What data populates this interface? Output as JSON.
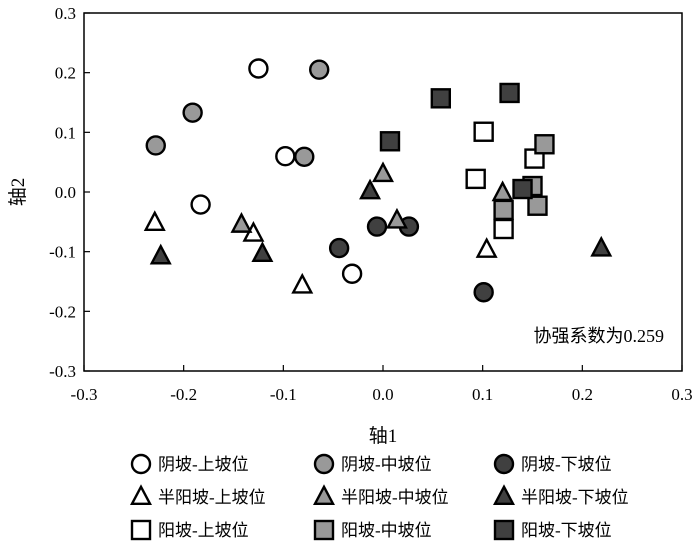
{
  "chart_data": {
    "type": "scatter",
    "title": "",
    "xlabel": "轴1",
    "ylabel": "轴2",
    "xlim": [
      -0.3,
      0.3
    ],
    "ylim": [
      -0.3,
      0.3
    ],
    "xticks": [
      "-0.3",
      "-0.2",
      "-0.1",
      "0.0",
      "0.1",
      "0.2",
      "0.3"
    ],
    "yticks": [
      "-0.3",
      "-0.2",
      "-0.1",
      "0.0",
      "0.1",
      "0.2",
      "0.3"
    ],
    "grid": false,
    "legend_position": "bottom",
    "annotation": "协强系数为0.259",
    "series": [
      {
        "name": "阴坡-上坡位",
        "marker": "circle",
        "color": "#ffffff",
        "points": [
          [
            -0.125,
            0.207
          ],
          [
            -0.098,
            0.06
          ],
          [
            -0.183,
            -0.021
          ],
          [
            -0.031,
            -0.137
          ]
        ]
      },
      {
        "name": "阴坡-中坡位",
        "marker": "circle",
        "color": "#999999",
        "points": [
          [
            -0.064,
            0.205
          ],
          [
            -0.191,
            0.133
          ],
          [
            -0.228,
            0.078
          ],
          [
            -0.079,
            0.059
          ]
        ]
      },
      {
        "name": "阴坡-下坡位",
        "marker": "circle",
        "color": "#404040",
        "points": [
          [
            -0.044,
            -0.094
          ],
          [
            -0.006,
            -0.058
          ],
          [
            0.026,
            -0.058
          ],
          [
            0.101,
            -0.168
          ]
        ]
      },
      {
        "name": "半阳坡-上坡位",
        "marker": "triangle",
        "color": "#ffffff",
        "points": [
          [
            -0.229,
            -0.052
          ],
          [
            -0.13,
            -0.07
          ],
          [
            -0.081,
            -0.157
          ],
          [
            0.104,
            -0.097
          ]
        ]
      },
      {
        "name": "半阳坡-中坡位",
        "marker": "triangle",
        "color": "#999999",
        "points": [
          [
            -0.142,
            -0.055
          ],
          [
            0.0,
            0.03
          ],
          [
            0.014,
            -0.048
          ],
          [
            0.12,
            -0.002
          ]
        ]
      },
      {
        "name": "半阳坡-下坡位",
        "marker": "triangle",
        "color": "#404040",
        "points": [
          [
            -0.223,
            -0.108
          ],
          [
            -0.121,
            -0.104
          ],
          [
            -0.013,
            0.001
          ],
          [
            0.219,
            -0.095
          ]
        ]
      },
      {
        "name": "阳坡-上坡位",
        "marker": "square",
        "color": "#ffffff",
        "points": [
          [
            0.101,
            0.101
          ],
          [
            0.093,
            0.022
          ],
          [
            0.121,
            -0.062
          ],
          [
            0.152,
            0.056
          ]
        ]
      },
      {
        "name": "阳坡-中坡位",
        "marker": "square",
        "color": "#999999",
        "points": [
          [
            0.121,
            -0.03
          ],
          [
            0.15,
            0.01
          ],
          [
            0.155,
            -0.023
          ],
          [
            0.162,
            0.08
          ]
        ]
      },
      {
        "name": "阳坡-下坡位",
        "marker": "square",
        "color": "#404040",
        "points": [
          [
            0.007,
            0.085
          ],
          [
            0.058,
            0.157
          ],
          [
            0.127,
            0.166
          ],
          [
            0.14,
            0.005
          ]
        ]
      }
    ]
  }
}
